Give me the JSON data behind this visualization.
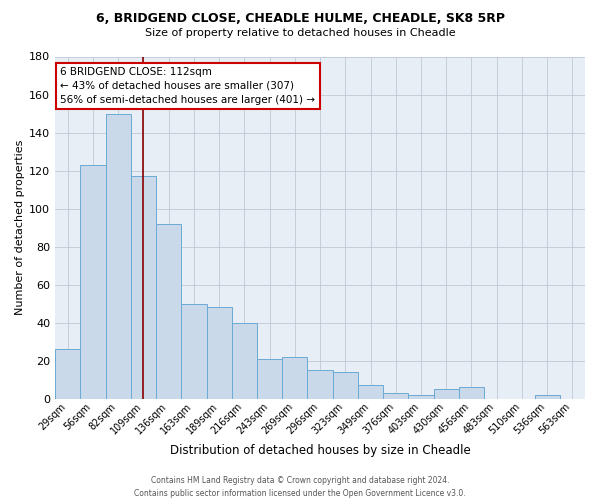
{
  "title_line1": "6, BRIDGEND CLOSE, CHEADLE HULME, CHEADLE, SK8 5RP",
  "title_line2": "Size of property relative to detached houses in Cheadle",
  "xlabel": "Distribution of detached houses by size in Cheadle",
  "ylabel": "Number of detached properties",
  "categories": [
    "29sqm",
    "56sqm",
    "82sqm",
    "109sqm",
    "136sqm",
    "163sqm",
    "189sqm",
    "216sqm",
    "243sqm",
    "269sqm",
    "296sqm",
    "323sqm",
    "349sqm",
    "376sqm",
    "403sqm",
    "430sqm",
    "456sqm",
    "483sqm",
    "510sqm",
    "536sqm",
    "563sqm"
  ],
  "values": [
    26,
    123,
    150,
    117,
    92,
    50,
    48,
    40,
    21,
    22,
    15,
    14,
    7,
    3,
    2,
    5,
    6,
    0,
    0,
    2,
    0
  ],
  "bar_color": "#c9d9ea",
  "bar_edge_color": "#6aaad4",
  "background_color": "#e8eef6",
  "annotation_text": "6 BRIDGEND CLOSE: 112sqm\n← 43% of detached houses are smaller (307)\n56% of semi-detached houses are larger (401) →",
  "annotation_box_color": "white",
  "annotation_box_edge": "#cc0000",
  "footer_line1": "Contains HM Land Registry data © Crown copyright and database right 2024.",
  "footer_line2": "Contains public sector information licensed under the Open Government Licence v3.0.",
  "ylim": [
    0,
    180
  ],
  "vline_x": 3,
  "vline_color": "#8b0000",
  "grid_color": "#c0c8d8"
}
